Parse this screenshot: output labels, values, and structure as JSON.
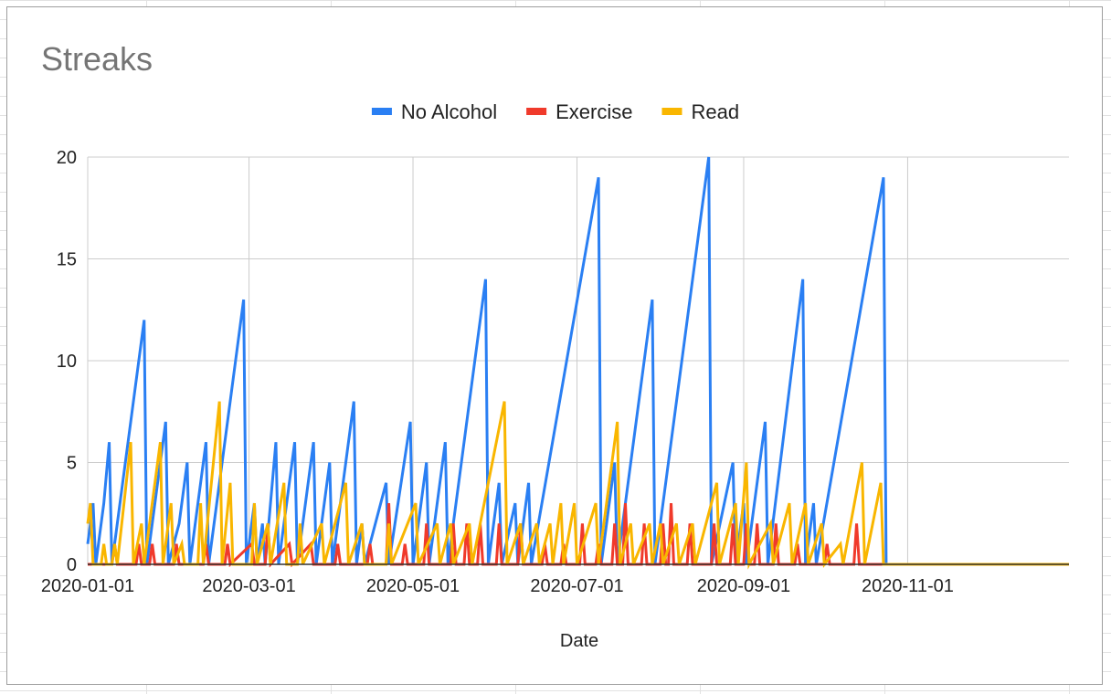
{
  "chart_data": {
    "type": "line",
    "title": "Streaks",
    "xlabel": "Date",
    "ylabel": "",
    "ylim": [
      0,
      20
    ],
    "y_ticks": [
      "0",
      "5",
      "10",
      "15",
      "20"
    ],
    "x_ticks": [
      "2020-01-01",
      "2020-03-01",
      "2020-05-01",
      "2020-07-01",
      "2020-09-01",
      "2020-11-01"
    ],
    "xlim": [
      "2020-01-01",
      "2020-12-31"
    ],
    "grid": true,
    "legend_position": "top",
    "series": [
      {
        "name": "No Alcohol",
        "color": "#2a7ff3",
        "points": [
          [
            "2020-01-01",
            1
          ],
          [
            "2020-01-02",
            2
          ],
          [
            "2020-01-03",
            3
          ],
          [
            "2020-01-04",
            0
          ],
          [
            "2020-01-07",
            3
          ],
          [
            "2020-01-09",
            6
          ],
          [
            "2020-01-10",
            0
          ],
          [
            "2020-01-11",
            1
          ],
          [
            "2020-01-22",
            12
          ],
          [
            "2020-01-23",
            0
          ],
          [
            "2020-01-29",
            6
          ],
          [
            "2020-01-30",
            7
          ],
          [
            "2020-01-31",
            0
          ],
          [
            "2020-02-04",
            2
          ],
          [
            "2020-02-07",
            5
          ],
          [
            "2020-02-08",
            0
          ],
          [
            "2020-02-14",
            6
          ],
          [
            "2020-02-15",
            0
          ],
          [
            "2020-02-28",
            13
          ],
          [
            "2020-02-29",
            0
          ],
          [
            "2020-03-03",
            3
          ],
          [
            "2020-03-04",
            0
          ],
          [
            "2020-03-06",
            2
          ],
          [
            "2020-03-07",
            0
          ],
          [
            "2020-03-11",
            6
          ],
          [
            "2020-03-12",
            0
          ],
          [
            "2020-03-18",
            6
          ],
          [
            "2020-03-19",
            0
          ],
          [
            "2020-03-25",
            6
          ],
          [
            "2020-03-26",
            0
          ],
          [
            "2020-03-31",
            5
          ],
          [
            "2020-04-01",
            0
          ],
          [
            "2020-04-09",
            8
          ],
          [
            "2020-04-10",
            0
          ],
          [
            "2020-04-12",
            2
          ],
          [
            "2020-04-13",
            0
          ],
          [
            "2020-04-21",
            4
          ],
          [
            "2020-04-22",
            0
          ],
          [
            "2020-04-30",
            7
          ],
          [
            "2020-05-01",
            0
          ],
          [
            "2020-05-06",
            5
          ],
          [
            "2020-05-07",
            0
          ],
          [
            "2020-05-13",
            6
          ],
          [
            "2020-05-14",
            0
          ],
          [
            "2020-05-28",
            14
          ],
          [
            "2020-05-29",
            0
          ],
          [
            "2020-06-02",
            4
          ],
          [
            "2020-06-03",
            0
          ],
          [
            "2020-06-08",
            3
          ],
          [
            "2020-06-09",
            0
          ],
          [
            "2020-06-13",
            4
          ],
          [
            "2020-06-14",
            0
          ],
          [
            "2020-07-09",
            19
          ],
          [
            "2020-07-10",
            0
          ],
          [
            "2020-07-15",
            5
          ],
          [
            "2020-07-16",
            0
          ],
          [
            "2020-07-29",
            13
          ],
          [
            "2020-07-30",
            0
          ],
          [
            "2020-08-19",
            20
          ],
          [
            "2020-08-20",
            0
          ],
          [
            "2020-08-28",
            5
          ],
          [
            "2020-08-29",
            0
          ],
          [
            "2020-09-01",
            3
          ],
          [
            "2020-09-02",
            0
          ],
          [
            "2020-09-09",
            7
          ],
          [
            "2020-09-10",
            0
          ],
          [
            "2020-09-23",
            14
          ],
          [
            "2020-09-24",
            0
          ],
          [
            "2020-09-27",
            3
          ],
          [
            "2020-09-28",
            0
          ],
          [
            "2020-10-23",
            19
          ],
          [
            "2020-10-24",
            0
          ],
          [
            "2020-12-31",
            0
          ]
        ]
      },
      {
        "name": "Exercise",
        "color": "#f03a2b",
        "points": [
          [
            "2020-01-01",
            0
          ],
          [
            "2020-01-10",
            0
          ],
          [
            "2020-01-11",
            1
          ],
          [
            "2020-01-12",
            0
          ],
          [
            "2020-01-19",
            0
          ],
          [
            "2020-01-20",
            1
          ],
          [
            "2020-01-21",
            0
          ],
          [
            "2020-01-24",
            0
          ],
          [
            "2020-01-25",
            1
          ],
          [
            "2020-01-26",
            0
          ],
          [
            "2020-02-02",
            0
          ],
          [
            "2020-02-03",
            1
          ],
          [
            "2020-02-04",
            0
          ],
          [
            "2020-02-13",
            0
          ],
          [
            "2020-02-14",
            1
          ],
          [
            "2020-02-15",
            0
          ],
          [
            "2020-02-21",
            0
          ],
          [
            "2020-02-22",
            1
          ],
          [
            "2020-02-23",
            0
          ],
          [
            "2020-03-02",
            1
          ],
          [
            "2020-03-03",
            0
          ],
          [
            "2020-03-07",
            0
          ],
          [
            "2020-03-08",
            2
          ],
          [
            "2020-03-09",
            0
          ],
          [
            "2020-03-16",
            1
          ],
          [
            "2020-03-17",
            0
          ],
          [
            "2020-03-24",
            1
          ],
          [
            "2020-03-25",
            0
          ],
          [
            "2020-04-02",
            0
          ],
          [
            "2020-04-03",
            1
          ],
          [
            "2020-04-04",
            0
          ],
          [
            "2020-04-14",
            0
          ],
          [
            "2020-04-15",
            1
          ],
          [
            "2020-04-16",
            0
          ],
          [
            "2020-04-21",
            0
          ],
          [
            "2020-04-22",
            3
          ],
          [
            "2020-04-23",
            0
          ],
          [
            "2020-04-27",
            0
          ],
          [
            "2020-04-28",
            1
          ],
          [
            "2020-04-29",
            0
          ],
          [
            "2020-05-05",
            0
          ],
          [
            "2020-05-06",
            2
          ],
          [
            "2020-05-07",
            0
          ],
          [
            "2020-05-15",
            0
          ],
          [
            "2020-05-16",
            2
          ],
          [
            "2020-05-17",
            0
          ],
          [
            "2020-05-20",
            0
          ],
          [
            "2020-05-21",
            2
          ],
          [
            "2020-05-22",
            0
          ],
          [
            "2020-05-25",
            0
          ],
          [
            "2020-05-26",
            2
          ],
          [
            "2020-05-27",
            0
          ],
          [
            "2020-06-01",
            0
          ],
          [
            "2020-06-02",
            2
          ],
          [
            "2020-06-03",
            0
          ],
          [
            "2020-06-09",
            0
          ],
          [
            "2020-06-10",
            2
          ],
          [
            "2020-06-11",
            0
          ],
          [
            "2020-06-18",
            0
          ],
          [
            "2020-06-19",
            1
          ],
          [
            "2020-06-20",
            0
          ],
          [
            "2020-06-25",
            0
          ],
          [
            "2020-06-26",
            1
          ],
          [
            "2020-06-27",
            0
          ],
          [
            "2020-07-02",
            0
          ],
          [
            "2020-07-03",
            2
          ],
          [
            "2020-07-04",
            0
          ],
          [
            "2020-07-08",
            0
          ],
          [
            "2020-07-09",
            1
          ],
          [
            "2020-07-10",
            0
          ],
          [
            "2020-07-14",
            0
          ],
          [
            "2020-07-15",
            2
          ],
          [
            "2020-07-16",
            0
          ],
          [
            "2020-07-18",
            0
          ],
          [
            "2020-07-19",
            3
          ],
          [
            "2020-07-20",
            0
          ],
          [
            "2020-07-25",
            0
          ],
          [
            "2020-07-26",
            2
          ],
          [
            "2020-07-27",
            0
          ],
          [
            "2020-08-01",
            0
          ],
          [
            "2020-08-02",
            2
          ],
          [
            "2020-08-03",
            0
          ],
          [
            "2020-08-04",
            0
          ],
          [
            "2020-08-05",
            3
          ],
          [
            "2020-08-06",
            0
          ],
          [
            "2020-08-11",
            0
          ],
          [
            "2020-08-12",
            2
          ],
          [
            "2020-08-13",
            0
          ],
          [
            "2020-08-20",
            0
          ],
          [
            "2020-08-21",
            2
          ],
          [
            "2020-08-22",
            0
          ],
          [
            "2020-08-27",
            0
          ],
          [
            "2020-08-28",
            2
          ],
          [
            "2020-08-29",
            0
          ],
          [
            "2020-09-01",
            0
          ],
          [
            "2020-09-02",
            2
          ],
          [
            "2020-09-03",
            0
          ],
          [
            "2020-09-05",
            0
          ],
          [
            "2020-09-06",
            2
          ],
          [
            "2020-09-07",
            0
          ],
          [
            "2020-09-12",
            0
          ],
          [
            "2020-09-13",
            2
          ],
          [
            "2020-09-14",
            0
          ],
          [
            "2020-09-20",
            0
          ],
          [
            "2020-09-21",
            1
          ],
          [
            "2020-09-22",
            0
          ],
          [
            "2020-10-01",
            0
          ],
          [
            "2020-10-02",
            1
          ],
          [
            "2020-10-03",
            0
          ],
          [
            "2020-10-12",
            0
          ],
          [
            "2020-10-13",
            2
          ],
          [
            "2020-10-14",
            0
          ],
          [
            "2020-12-31",
            0
          ]
        ]
      },
      {
        "name": "Read",
        "color": "#f9b600",
        "points": [
          [
            "2020-01-01",
            2
          ],
          [
            "2020-01-02",
            3
          ],
          [
            "2020-01-03",
            0
          ],
          [
            "2020-01-06",
            0
          ],
          [
            "2020-01-07",
            1
          ],
          [
            "2020-01-08",
            0
          ],
          [
            "2020-01-10",
            0
          ],
          [
            "2020-01-11",
            1
          ],
          [
            "2020-01-12",
            0
          ],
          [
            "2020-01-17",
            6
          ],
          [
            "2020-01-18",
            0
          ],
          [
            "2020-01-21",
            2
          ],
          [
            "2020-01-22",
            0
          ],
          [
            "2020-01-28",
            6
          ],
          [
            "2020-01-29",
            0
          ],
          [
            "2020-02-01",
            3
          ],
          [
            "2020-02-02",
            0
          ],
          [
            "2020-02-05",
            1
          ],
          [
            "2020-02-06",
            0
          ],
          [
            "2020-02-11",
            0
          ],
          [
            "2020-02-12",
            3
          ],
          [
            "2020-02-13",
            0
          ],
          [
            "2020-02-19",
            8
          ],
          [
            "2020-02-20",
            0
          ],
          [
            "2020-02-23",
            4
          ],
          [
            "2020-02-24",
            0
          ],
          [
            "2020-03-02",
            0
          ],
          [
            "2020-03-03",
            3
          ],
          [
            "2020-03-04",
            0
          ],
          [
            "2020-03-08",
            2
          ],
          [
            "2020-03-09",
            0
          ],
          [
            "2020-03-14",
            4
          ],
          [
            "2020-03-15",
            0
          ],
          [
            "2020-03-19",
            0
          ],
          [
            "2020-03-20",
            2
          ],
          [
            "2020-03-21",
            0
          ],
          [
            "2020-03-28",
            2
          ],
          [
            "2020-03-29",
            0
          ],
          [
            "2020-04-06",
            4
          ],
          [
            "2020-04-07",
            0
          ],
          [
            "2020-04-12",
            2
          ],
          [
            "2020-04-13",
            0
          ],
          [
            "2020-04-21",
            0
          ],
          [
            "2020-04-22",
            2
          ],
          [
            "2020-04-23",
            0
          ],
          [
            "2020-05-02",
            3
          ],
          [
            "2020-05-03",
            0
          ],
          [
            "2020-05-10",
            2
          ],
          [
            "2020-05-11",
            0
          ],
          [
            "2020-05-15",
            2
          ],
          [
            "2020-05-16",
            0
          ],
          [
            "2020-05-22",
            2
          ],
          [
            "2020-05-23",
            0
          ],
          [
            "2020-06-04",
            8
          ],
          [
            "2020-06-05",
            0
          ],
          [
            "2020-06-10",
            2
          ],
          [
            "2020-06-11",
            0
          ],
          [
            "2020-06-16",
            2
          ],
          [
            "2020-06-17",
            0
          ],
          [
            "2020-06-21",
            2
          ],
          [
            "2020-06-22",
            0
          ],
          [
            "2020-06-25",
            3
          ],
          [
            "2020-06-26",
            0
          ],
          [
            "2020-06-30",
            3
          ],
          [
            "2020-07-01",
            0
          ],
          [
            "2020-07-08",
            3
          ],
          [
            "2020-07-09",
            0
          ],
          [
            "2020-07-16",
            7
          ],
          [
            "2020-07-17",
            0
          ],
          [
            "2020-07-21",
            2
          ],
          [
            "2020-07-22",
            0
          ],
          [
            "2020-07-28",
            2
          ],
          [
            "2020-07-29",
            0
          ],
          [
            "2020-08-01",
            2
          ],
          [
            "2020-08-02",
            0
          ],
          [
            "2020-08-07",
            2
          ],
          [
            "2020-08-08",
            0
          ],
          [
            "2020-08-13",
            2
          ],
          [
            "2020-08-14",
            0
          ],
          [
            "2020-08-22",
            4
          ],
          [
            "2020-08-23",
            0
          ],
          [
            "2020-08-29",
            3
          ],
          [
            "2020-08-30",
            0
          ],
          [
            "2020-09-02",
            5
          ],
          [
            "2020-09-03",
            0
          ],
          [
            "2020-09-11",
            2
          ],
          [
            "2020-09-12",
            0
          ],
          [
            "2020-09-18",
            3
          ],
          [
            "2020-09-19",
            0
          ],
          [
            "2020-09-24",
            3
          ],
          [
            "2020-09-25",
            0
          ],
          [
            "2020-09-30",
            2
          ],
          [
            "2020-10-01",
            0
          ],
          [
            "2020-10-07",
            1
          ],
          [
            "2020-10-08",
            0
          ],
          [
            "2020-10-15",
            5
          ],
          [
            "2020-10-16",
            0
          ],
          [
            "2020-10-22",
            4
          ],
          [
            "2020-10-23",
            0
          ],
          [
            "2020-12-31",
            0
          ]
        ]
      }
    ]
  }
}
